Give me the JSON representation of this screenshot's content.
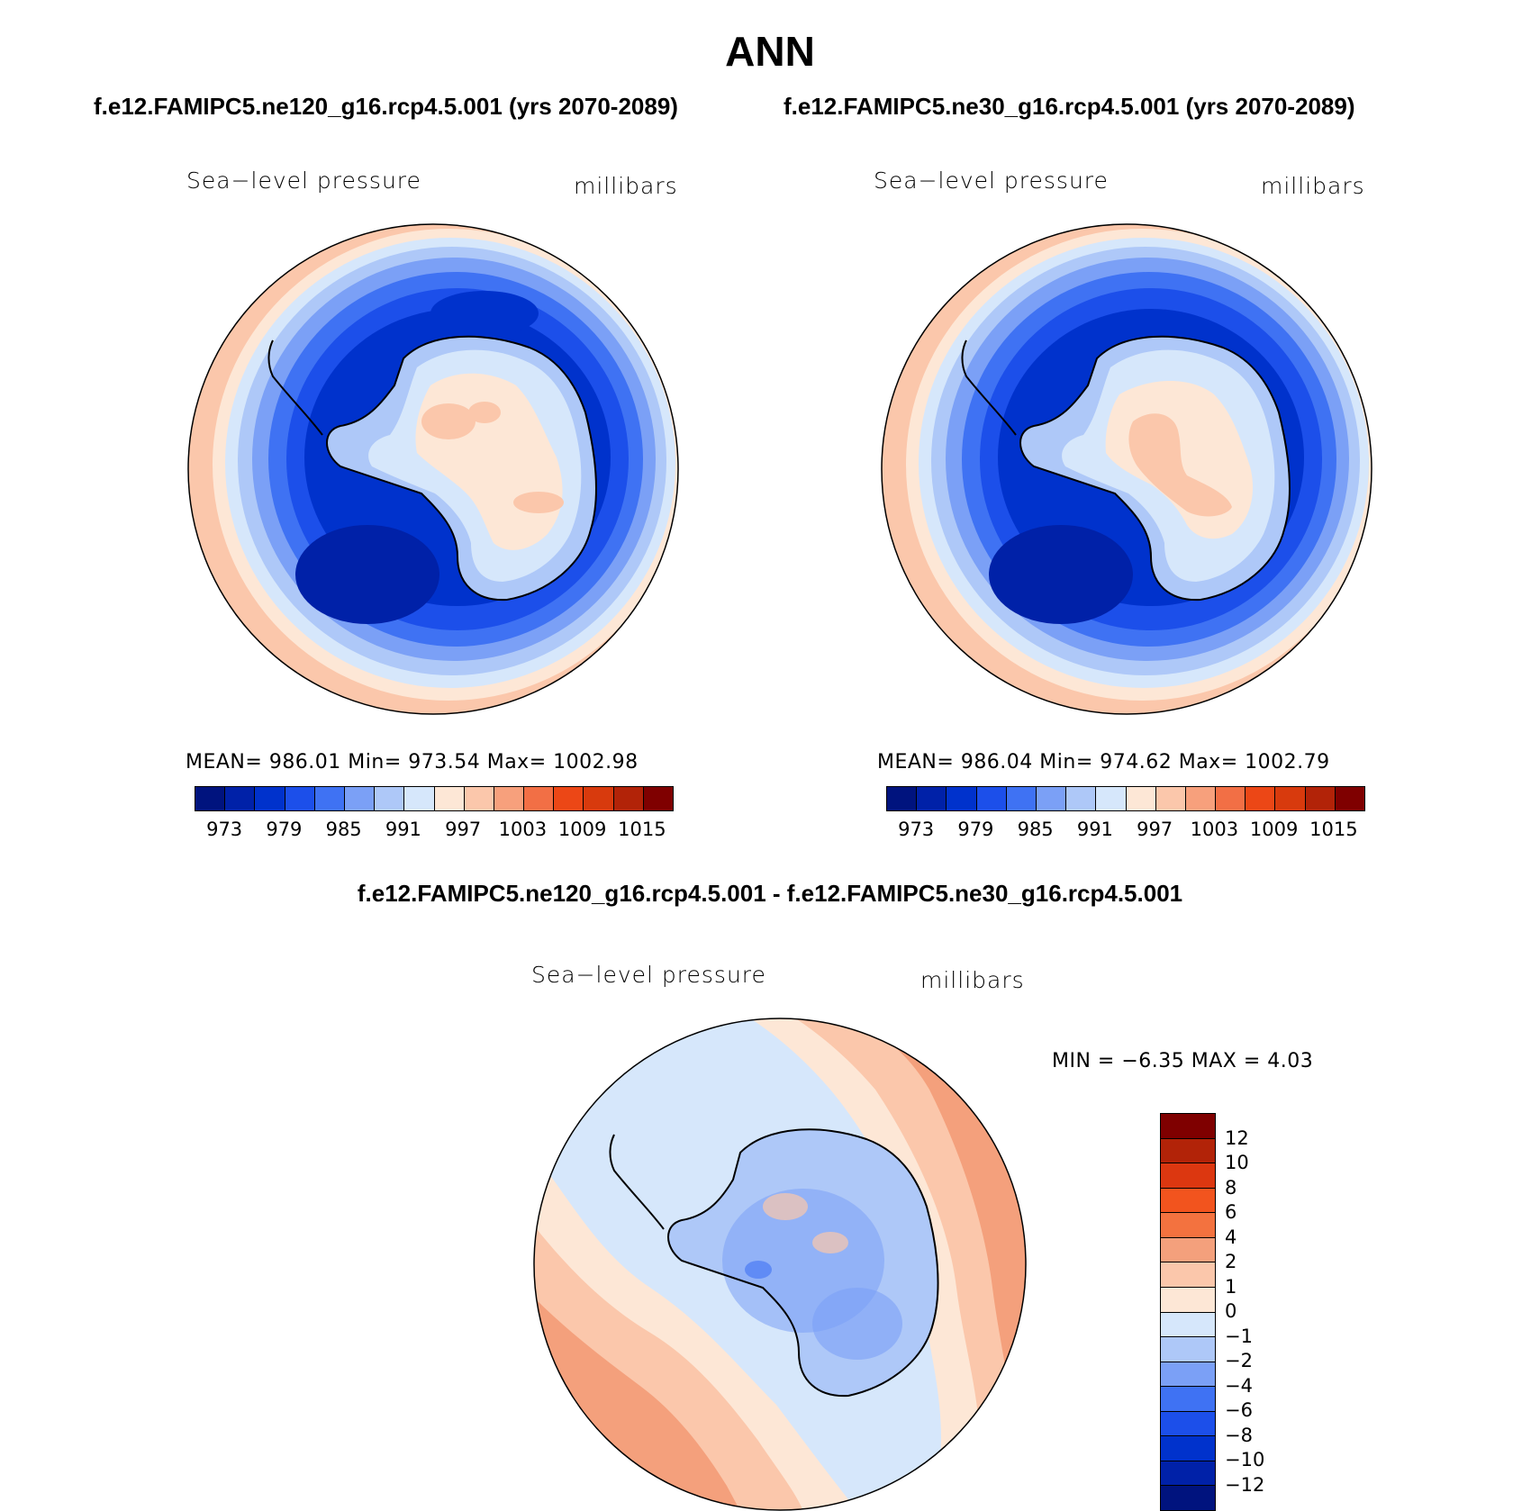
{
  "title": "ANN",
  "case_a": "f.e12.FAMIPC5.ne120_g16.rcp4.5.001 (yrs 2070-2089)",
  "case_b": "f.e12.FAMIPC5.ne30_g16.rcp4.5.001 (yrs 2070-2089)",
  "diff_title": "f.e12.FAMIPC5.ne120_g16.rcp4.5.001 - f.e12.FAMIPC5.ne30_g16.rcp4.5.001",
  "variable": "Sea−level pressure",
  "units": "millibars",
  "panel_a": {
    "stats": "MEAN=  986.01    Min=  973.54    Max=  1002.98"
  },
  "panel_b": {
    "stats": "MEAN=  986.04    Min=  974.62    Max=  1002.79"
  },
  "panel_diff": {
    "stats": "MIN =    −6.35  MAX =     4.03"
  },
  "colorbar_abs": {
    "colors": [
      "#00137e",
      "#0021a8",
      "#0032cc",
      "#1c4fea",
      "#3f72f3",
      "#7ba0f6",
      "#aec8f8",
      "#d6e7fb",
      "#fde7d6",
      "#fbc7ab",
      "#f7a07c",
      "#f26f45",
      "#ec4716",
      "#d83a0d",
      "#b22308",
      "#7f0000"
    ],
    "labels": [
      "973",
      "979",
      "985",
      "991",
      "997",
      "1003",
      "1009",
      "1015"
    ]
  },
  "colorbar_diff": {
    "colors": [
      "#7f0000",
      "#b22308",
      "#dc3710",
      "#f2541e",
      "#f3723f",
      "#f4a07c",
      "#fbc7ab",
      "#fde7d6",
      "#d6e7fb",
      "#aec8f8",
      "#7ba0f6",
      "#3f72f3",
      "#1c4fea",
      "#0032cc",
      "#0021a8",
      "#00137e"
    ],
    "labels": [
      "12",
      "10",
      "8",
      "6",
      "4",
      "2",
      "1",
      "0",
      "−1",
      "−2",
      "−4",
      "−6",
      "−8",
      "−10",
      "−12"
    ]
  }
}
